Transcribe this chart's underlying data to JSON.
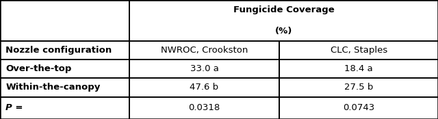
{
  "title_line1": "Fungicide Coverage",
  "title_line2": "(%)",
  "col_headers": [
    "NWROC, Crookston",
    "CLC, Staples"
  ],
  "row_labels": [
    "Nozzle configuration",
    "Over-the-top",
    "Within-the-canopy",
    "P ="
  ],
  "row_bold": [
    true,
    true,
    true,
    false
  ],
  "row_italic": [
    false,
    false,
    false,
    true
  ],
  "data_col1": [
    "NWROC, Crookston",
    "33.0 a",
    "47.6 b",
    "0.0318"
  ],
  "data_col2": [
    "CLC, Staples",
    "18.4 a",
    "27.5 b",
    "0.0743"
  ],
  "bg_color": "#ffffff",
  "font_size": 9.5,
  "fig_width": 6.4,
  "fig_height": 1.74,
  "col_split": 0.295,
  "col_mid_split": 0.638,
  "row_tops": [
    1.0,
    0.655,
    0.5,
    0.345,
    0.185,
    0.0
  ]
}
